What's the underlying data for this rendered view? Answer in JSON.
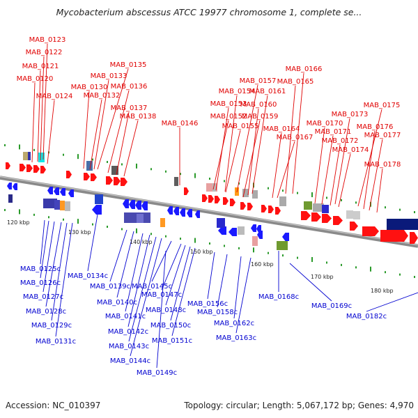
{
  "header": {
    "title": "Mycobacterium abscessus ATCC 19977 chromosome 1, complete se..."
  },
  "footer": {
    "accession": "Accession: NC_010397",
    "summary": "Topology: circular; Length: 5,067,172 bp; Genes: 4,970"
  },
  "colors": {
    "forward_label": "#e00000",
    "reverse_label": "#0000d0",
    "backbone": "#8a8a8a",
    "tick": "#2a9a2a"
  },
  "kbp_ticks": [
    "120 kbp",
    "130 kbp",
    "140 kbp",
    "150 kbp",
    "160 kbp",
    "170 kbp",
    "180 kbp"
  ],
  "forward_genes": [
    "MAB_0123",
    "MAB_0122",
    "MAB_0121",
    "MAB_0120",
    "MAB_0124",
    "MAB_0135",
    "MAB_0133",
    "MAB_0130",
    "MAB_0136",
    "MAB_0132",
    "MAB_0137",
    "MAB_0138",
    "MAB_0146",
    "MAB_0166",
    "MAB_0165",
    "MAB_0157",
    "MAB_0154",
    "MAB_0161",
    "MAB_0153",
    "MAB_0160",
    "MAB_0152",
    "MAB_0159",
    "MAB_0155",
    "MAB_0164",
    "MAB_0167",
    "MAB_0175",
    "MAB_0173",
    "MAB_0170",
    "MAB_0176",
    "MAB_0171",
    "MAB_0177",
    "MAB_0172",
    "MAB_0174",
    "MAB_0178"
  ],
  "reverse_genes": [
    "MAB_0125c",
    "MAB_0126c",
    "MAB_0127c",
    "MAB_0128c",
    "MAB_0129c",
    "MAB_0131c",
    "MAB_0134c",
    "MAB_0139c",
    "MAB_0140c",
    "MAB_0141c",
    "MAB_0142c",
    "MAB_0143c",
    "MAB_0144c",
    "MAB_0145c",
    "MAB_0147c",
    "MAB_0148c",
    "MAB_0150c",
    "MAB_0151c",
    "MAB_0149c",
    "MAB_0156c",
    "MAB_0158c",
    "MAB_0162c",
    "MAB_0163c",
    "MAB_0168c",
    "MAB_0169c",
    "MAB_0182c"
  ]
}
